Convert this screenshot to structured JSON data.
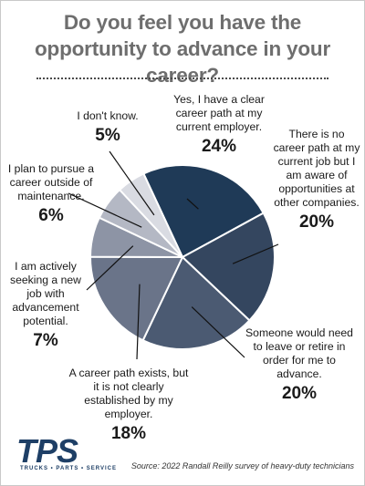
{
  "title": "Do you feel you have the opportunity to advance in your career?",
  "chart_data": {
    "type": "pie",
    "title": "Do you feel you have the opportunity to advance in your career?",
    "slices": [
      {
        "label": "Yes, I have a clear career path at my current employer.",
        "value": 24,
        "display": "24%",
        "color": "#1f3a57"
      },
      {
        "label": "There is no career path at my current job but I am aware of opportunities at other companies.",
        "value": 20,
        "display": "20%",
        "color": "#34465f"
      },
      {
        "label": "Someone would need to leave or retire in order for me to advance.",
        "value": 20,
        "display": "20%",
        "color": "#4b5a72"
      },
      {
        "label": "A career path exists, but it is not clearly established by my employer.",
        "value": 18,
        "display": "18%",
        "color": "#6a7489"
      },
      {
        "label": "I am actively seeking a new job with advancement potential.",
        "value": 7,
        "display": "7%",
        "color": "#8d94a5"
      },
      {
        "label": "I plan to pursue a career outside of maintenance.",
        "value": 6,
        "display": "6%",
        "color": "#b4b8c4"
      },
      {
        "label": "I don't know.",
        "value": 5,
        "display": "5%",
        "color": "#d9dbe2"
      }
    ]
  },
  "logo": {
    "text": "TPS",
    "tagline": "TRUCKS • PARTS • SERVICE"
  },
  "source": "Source: 2022 Randall Reilly survey of heavy-duty technicians"
}
